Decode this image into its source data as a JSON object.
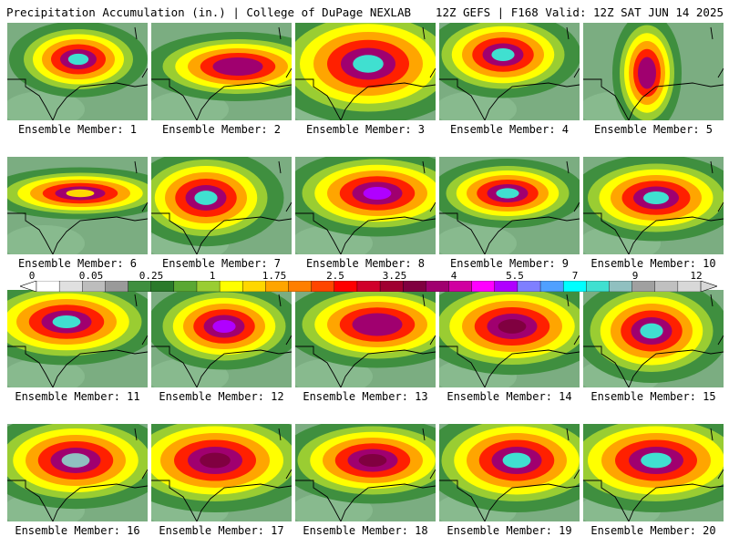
{
  "header": {
    "title": "Precipitation Accumulation (in.) | College of DuPage NEXLAB",
    "valid": "12Z GEFS | F168 Valid: 12Z SAT JUN 14 2025"
  },
  "members": [
    "Ensemble Member: 1",
    "Ensemble Member: 2",
    "Ensemble Member: 3",
    "Ensemble Member: 4",
    "Ensemble Member: 5",
    "Ensemble Member: 6",
    "Ensemble Member: 7",
    "Ensemble Member: 8",
    "Ensemble Member: 9",
    "Ensemble Member: 10",
    "Ensemble Member: 11",
    "Ensemble Member: 12",
    "Ensemble Member: 13",
    "Ensemble Member: 14",
    "Ensemble Member: 15",
    "Ensemble Member: 16",
    "Ensemble Member: 17",
    "Ensemble Member: 18",
    "Ensemble Member: 19",
    "Ensemble Member: 20"
  ],
  "colorbar": {
    "labels": [
      "0",
      "0.05",
      "0.25",
      "1",
      "1.75",
      "2.5",
      "3.25",
      "4",
      "5.5",
      "7",
      "9",
      "12"
    ],
    "colors": [
      "#ffffff",
      "#e0e0e0",
      "#bdbdbd",
      "#9a9a9a",
      "#3f8f3f",
      "#2a7a2a",
      "#5aa832",
      "#9acd32",
      "#ffff00",
      "#ffd700",
      "#ffa500",
      "#ff7f00",
      "#ff4500",
      "#ff0000",
      "#d0002a",
      "#a00030",
      "#800040",
      "#a0006f",
      "#d000a0",
      "#ff00ff",
      "#b000ff",
      "#7f7fff",
      "#4fa0ff",
      "#00ffff",
      "#40e0d0",
      "#90c0c0",
      "#a0a0a0",
      "#c0c0c0",
      "#d8d8d8"
    ]
  }
}
